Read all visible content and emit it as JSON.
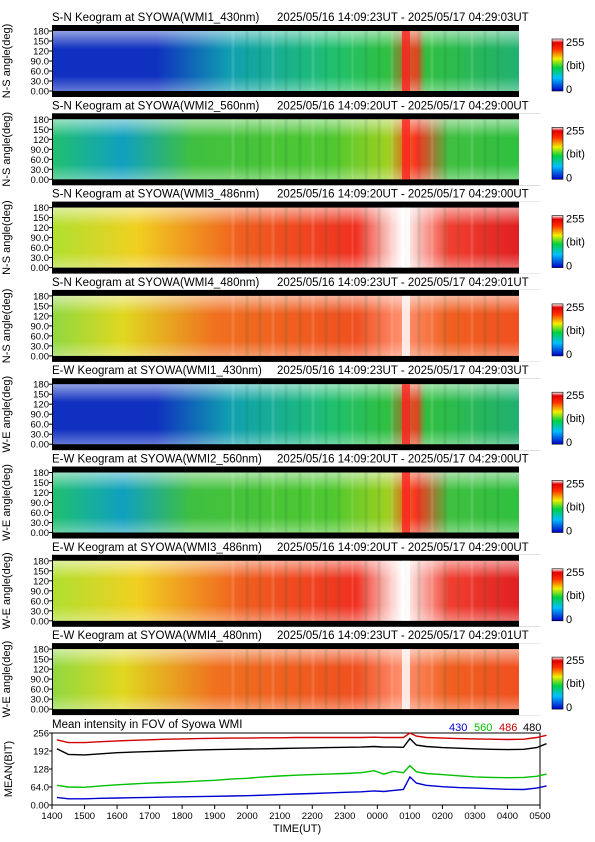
{
  "colorbar": {
    "max_label": "255",
    "unit_label": "(bit)",
    "min_label": "0",
    "min": 0,
    "max": 255
  },
  "keograms": [
    {
      "type": "heatmap",
      "title": "S-N Keogram at SYOWA(WMI1_430nm)",
      "time_range": "2025/05/16 14:09:23UT - 2025/05/17 04:29:03UT",
      "ylabel": "N-S angle(deg)",
      "yticks": [
        "0.00",
        "30.0",
        "60.0",
        "90.0",
        "120",
        "150",
        "180"
      ],
      "ylim": [
        0,
        180
      ],
      "palette": "low"
    },
    {
      "type": "heatmap",
      "title": "S-N Keogram at SYOWA(WMI2_560nm)",
      "time_range": "2025/05/16 14:09:20UT - 2025/05/17 04:29:00UT",
      "ylabel": "N-S angle(deg)",
      "yticks": [
        "0.00",
        "30.0",
        "60.0",
        "90.0",
        "120",
        "150",
        "180"
      ],
      "ylim": [
        0,
        180
      ],
      "palette": "mid"
    },
    {
      "type": "heatmap",
      "title": "S-N Keogram at SYOWA(WMI3_486nm)",
      "time_range": "2025/05/16 14:09:20UT - 2025/05/17 04:29:00UT",
      "ylabel": "N-S angle(deg)",
      "yticks": [
        "0.00",
        "30.0",
        "60.0",
        "90.0",
        "120",
        "150",
        "180"
      ],
      "ylim": [
        0,
        180
      ],
      "palette": "high"
    },
    {
      "type": "heatmap",
      "title": "S-N Keogram at SYOWA(WMI4_480nm)",
      "time_range": "2025/05/16 14:09:23UT - 2025/05/17 04:29:01UT",
      "ylabel": "N-S angle(deg)",
      "yticks": [
        "0.00",
        "30.0",
        "60.0",
        "90.0",
        "120",
        "150",
        "180"
      ],
      "ylim": [
        0,
        180
      ],
      "palette": "high2"
    },
    {
      "type": "heatmap",
      "title": "E-W Keogram at SYOWA(WMI1_430nm)",
      "time_range": "2025/05/16 14:09:23UT - 2025/05/17 04:29:03UT",
      "ylabel": "W-E angle(deg)",
      "yticks": [
        "0.00",
        "30.0",
        "60.0",
        "90.0",
        "120",
        "150",
        "180"
      ],
      "ylim": [
        0,
        180
      ],
      "palette": "low"
    },
    {
      "type": "heatmap",
      "title": "E-W Keogram at SYOWA(WMI2_560nm)",
      "time_range": "2025/05/16 14:09:20UT - 2025/05/17 04:29:00UT",
      "ylabel": "W-E angle(deg)",
      "yticks": [
        "0.00",
        "30.0",
        "60.0",
        "90.0",
        "120",
        "150",
        "180"
      ],
      "ylim": [
        0,
        180
      ],
      "palette": "mid"
    },
    {
      "type": "heatmap",
      "title": "E-W Keogram at SYOWA(WMI3_486nm)",
      "time_range": "2025/05/16 14:09:20UT - 2025/05/17 04:29:00UT",
      "ylabel": "W-E angle(deg)",
      "yticks": [
        "0.00",
        "30.0",
        "60.0",
        "90.0",
        "120",
        "150",
        "180"
      ],
      "ylim": [
        0,
        180
      ],
      "palette": "high"
    },
    {
      "type": "heatmap",
      "title": "E-W Keogram at SYOWA(WMI4_480nm)",
      "time_range": "2025/05/16 14:09:23UT - 2025/05/17 04:29:01UT",
      "ylabel": "W-E angle(deg)",
      "yticks": [
        "0.00",
        "30.0",
        "60.0",
        "90.0",
        "120",
        "150",
        "180"
      ],
      "ylim": [
        0,
        180
      ],
      "palette": "high2"
    }
  ],
  "time_axis": {
    "label": "TIME(UT)",
    "ticks": [
      "1400",
      "1500",
      "1600",
      "1700",
      "1800",
      "1900",
      "2000",
      "2100",
      "2200",
      "2300",
      "0000",
      "0100",
      "0200",
      "0300",
      "0400",
      "0500"
    ],
    "range_hours": [
      14,
      29
    ]
  },
  "chart_data": {
    "type": "line",
    "title": "Mean intensity in FOV of Syowa WMI",
    "xlabel": "TIME(UT)",
    "ylabel": "MEAN(BIT)",
    "ylim": [
      0,
      256
    ],
    "yticks": [
      "0.00",
      "64.0",
      "128",
      "192",
      "256"
    ],
    "x": [
      14.15,
      14.5,
      15.0,
      15.5,
      16.0,
      16.5,
      17.0,
      17.5,
      18.0,
      18.5,
      19.0,
      19.5,
      20.0,
      20.5,
      21.0,
      21.5,
      22.0,
      22.5,
      23.0,
      23.5,
      23.9,
      24.2,
      24.5,
      24.8,
      25.0,
      25.2,
      25.5,
      26.0,
      26.5,
      27.0,
      27.5,
      28.0,
      28.5,
      28.9,
      29.2
    ],
    "series": [
      {
        "name": "430",
        "color": "#0000d0",
        "values": [
          27,
          22,
          22,
          24,
          25,
          26,
          27,
          28,
          29,
          30,
          31,
          32,
          33,
          35,
          37,
          39,
          41,
          43,
          45,
          47,
          50,
          48,
          52,
          55,
          100,
          78,
          70,
          65,
          62,
          60,
          58,
          56,
          55,
          60,
          68
        ]
      },
      {
        "name": "560",
        "color": "#00c000",
        "values": [
          70,
          64,
          63,
          68,
          72,
          75,
          78,
          80,
          82,
          85,
          88,
          92,
          95,
          100,
          103,
          106,
          108,
          110,
          112,
          115,
          122,
          110,
          120,
          115,
          140,
          118,
          112,
          108,
          104,
          100,
          98,
          97,
          98,
          102,
          110
        ]
      },
      {
        "name": "486",
        "color": "#d00000",
        "values": [
          232,
          222,
          222,
          225,
          228,
          230,
          232,
          234,
          235,
          236,
          237,
          238,
          238,
          239,
          239,
          240,
          240,
          240,
          240,
          240,
          241,
          240,
          240,
          240,
          256,
          245,
          240,
          238,
          236,
          235,
          234,
          233,
          234,
          240,
          248
        ]
      },
      {
        "name": "480",
        "color": "#000000",
        "values": [
          200,
          180,
          178,
          182,
          186,
          188,
          190,
          192,
          194,
          196,
          197,
          198,
          199,
          200,
          201,
          202,
          203,
          204,
          205,
          206,
          208,
          206,
          206,
          205,
          236,
          213,
          208,
          204,
          202,
          200,
          198,
          197,
          198,
          204,
          218
        ]
      }
    ]
  }
}
